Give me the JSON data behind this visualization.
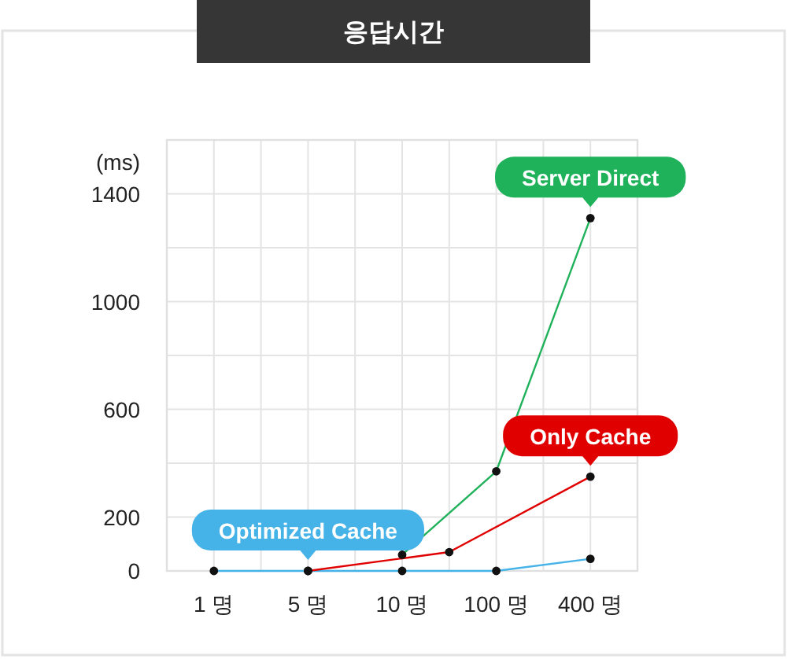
{
  "chart_data": {
    "type": "line",
    "title": "응답시간",
    "ylabel": "(ms)",
    "categories": [
      "1 명",
      null,
      "5 명",
      null,
      "10 명",
      null,
      "100 명",
      null,
      "400 명"
    ],
    "ylim": [
      0,
      1600
    ],
    "yticks": [
      0,
      200,
      600,
      1000,
      1400
    ],
    "grid": true,
    "marker": "circle",
    "series": [
      {
        "color": "#45b3e8",
        "values": [
          0,
          null,
          0,
          null,
          0,
          null,
          0,
          null,
          45
        ]
      },
      {
        "color": "#e00000",
        "values": [
          null,
          null,
          0,
          null,
          null,
          70,
          null,
          null,
          350
        ]
      },
      {
        "color": "#1fb25a",
        "values": [
          null,
          null,
          null,
          null,
          60,
          null,
          370,
          null,
          1310
        ]
      }
    ],
    "annotations": [
      {
        "text": "Optimized Cache",
        "x": "5 명",
        "y": 0
      },
      {
        "text": "Only Cache",
        "x": "400 명",
        "y": 350
      },
      {
        "text": "Server Direct",
        "x": "400 명",
        "y": 1310
      }
    ]
  }
}
